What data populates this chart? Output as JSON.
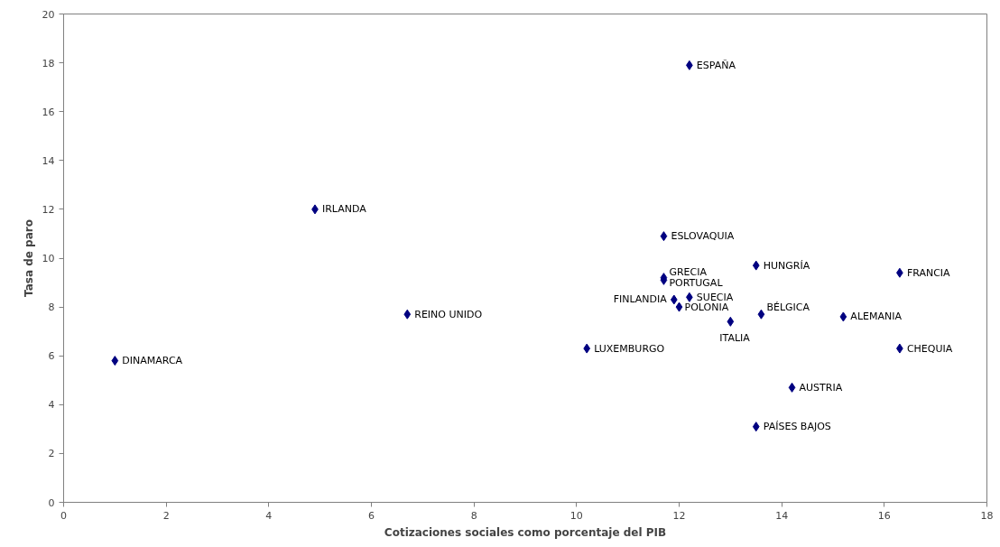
{
  "chart_data": {
    "type": "scatter",
    "xlabel": "Cotizaciones sociales como porcentaje del PIB",
    "ylabel": "Tasa de paro",
    "x": [
      1.0,
      4.9,
      6.7,
      10.2,
      11.7,
      11.7,
      11.7,
      11.9,
      12.0,
      12.2,
      12.2,
      13.0,
      13.5,
      13.6,
      14.2,
      13.5,
      15.2,
      16.3,
      16.3
    ],
    "series": [
      {
        "color": "#000080",
        "values": [
          5.8,
          12.0,
          7.7,
          6.3,
          10.9,
          9.2,
          9.1,
          8.3,
          8.0,
          8.4,
          17.9,
          7.4,
          9.7,
          7.7,
          4.7,
          3.1,
          7.6,
          9.4,
          6.3
        ]
      }
    ],
    "annotations": [
      {
        "text": "DINAMARCA",
        "x": 1.0,
        "y": 5.8
      },
      {
        "text": "IRLANDA",
        "x": 4.9,
        "y": 12.0
      },
      {
        "text": "REINO UNIDO",
        "x": 6.7,
        "y": 7.7
      },
      {
        "text": "LUXEMBURGO",
        "x": 10.2,
        "y": 6.3
      },
      {
        "text": "ESLOVAQUIA",
        "x": 11.7,
        "y": 10.9
      },
      {
        "text": "GRECIA",
        "x": 11.7,
        "y": 9.2
      },
      {
        "text": "PORTUGAL",
        "x": 11.7,
        "y": 9.1
      },
      {
        "text": "FINLANDIA",
        "x": 11.9,
        "y": 8.3
      },
      {
        "text": "POLONIA",
        "x": 12.0,
        "y": 8.0
      },
      {
        "text": "SUECIA",
        "x": 12.2,
        "y": 8.4
      },
      {
        "text": "ESPAÑA",
        "x": 12.2,
        "y": 17.9
      },
      {
        "text": "ITALIA",
        "x": 13.0,
        "y": 7.4
      },
      {
        "text": "HUNGRÍA",
        "x": 13.5,
        "y": 9.7
      },
      {
        "text": "BÉLGICA",
        "x": 13.6,
        "y": 7.7
      },
      {
        "text": "AUSTRIA",
        "x": 14.2,
        "y": 4.7
      },
      {
        "text": "PAÍSES BAJOS",
        "x": 13.5,
        "y": 3.1
      },
      {
        "text": "ALEMANIA",
        "x": 15.2,
        "y": 7.6
      },
      {
        "text": "FRANCIA",
        "x": 16.3,
        "y": 9.4
      },
      {
        "text": "CHEQUIA",
        "x": 16.3,
        "y": 6.3
      }
    ],
    "xlim": [
      0,
      18
    ],
    "xticks": [
      0,
      2,
      4,
      6,
      8,
      10,
      12,
      14,
      16,
      18
    ],
    "ylim": [
      0,
      20
    ],
    "yticks": [
      0,
      2,
      4,
      6,
      8,
      10,
      12,
      14,
      16,
      18,
      20
    ],
    "grid": false,
    "marker": "diamond"
  }
}
